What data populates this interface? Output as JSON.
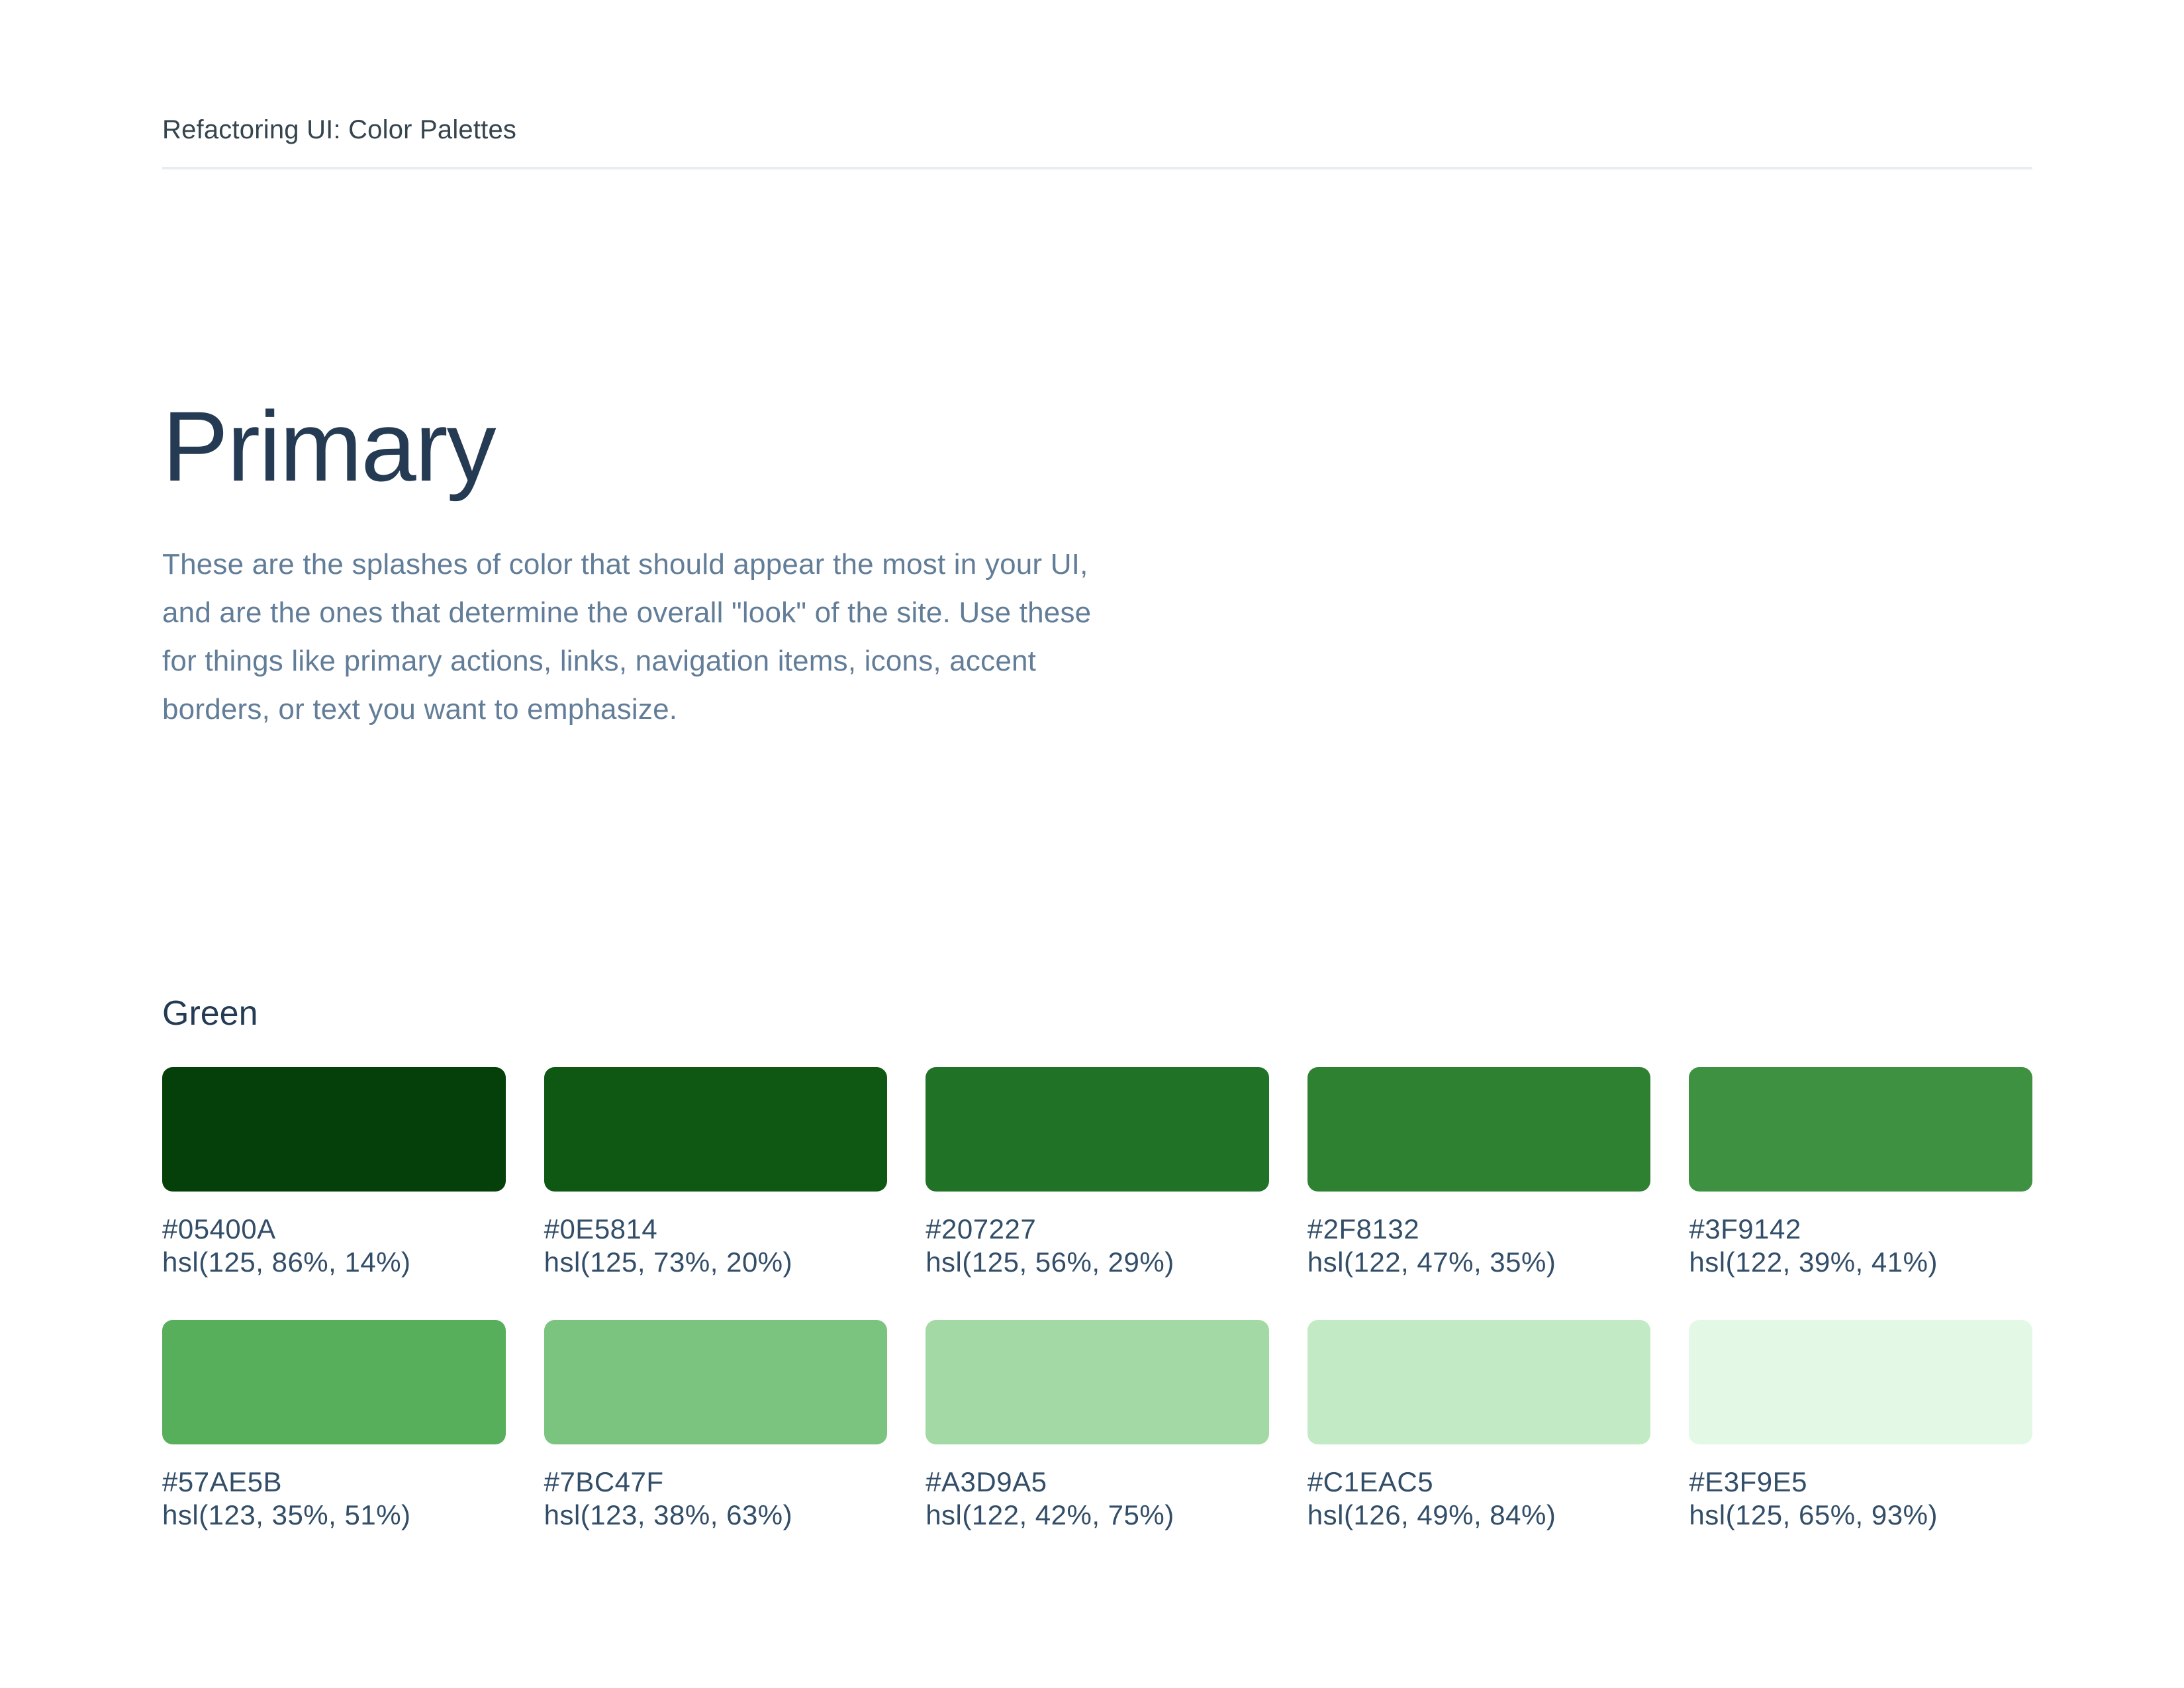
{
  "header": {
    "title": "Refactoring UI: Color Palettes"
  },
  "section": {
    "title": "Primary",
    "description_lines": [
      "These are the splashes of color that should appear the most in your UI,",
      "and are the ones that determine the overall \"look\" of the site. Use these",
      "for things like primary actions, links, navigation items, icons, accent",
      "borders, or text you want to emphasize."
    ]
  },
  "palette": {
    "name": "Green",
    "swatches": [
      {
        "hex": "#05400A",
        "hsl": "hsl(125, 86%, 14%)"
      },
      {
        "hex": "#0E5814",
        "hsl": "hsl(125, 73%, 20%)"
      },
      {
        "hex": "#207227",
        "hsl": "hsl(125, 56%, 29%)"
      },
      {
        "hex": "#2F8132",
        "hsl": "hsl(122, 47%, 35%)"
      },
      {
        "hex": "#3F9142",
        "hsl": "hsl(122, 39%, 41%)"
      },
      {
        "hex": "#57AE5B",
        "hsl": "hsl(123, 35%, 51%)"
      },
      {
        "hex": "#7BC47F",
        "hsl": "hsl(123, 38%, 63%)"
      },
      {
        "hex": "#A3D9A5",
        "hsl": "hsl(122, 42%, 75%)"
      },
      {
        "hex": "#C1EAC5",
        "hsl": "hsl(126, 49%, 84%)"
      },
      {
        "hex": "#E3F9E5",
        "hsl": "hsl(125, 65%, 93%)"
      }
    ]
  },
  "colors": {
    "background": "#FFFFFF",
    "header_text": "#35444D",
    "divider": "#E9EDF0",
    "heading_text": "#243B53",
    "body_text": "#627D98",
    "label_text": "#334E68"
  }
}
